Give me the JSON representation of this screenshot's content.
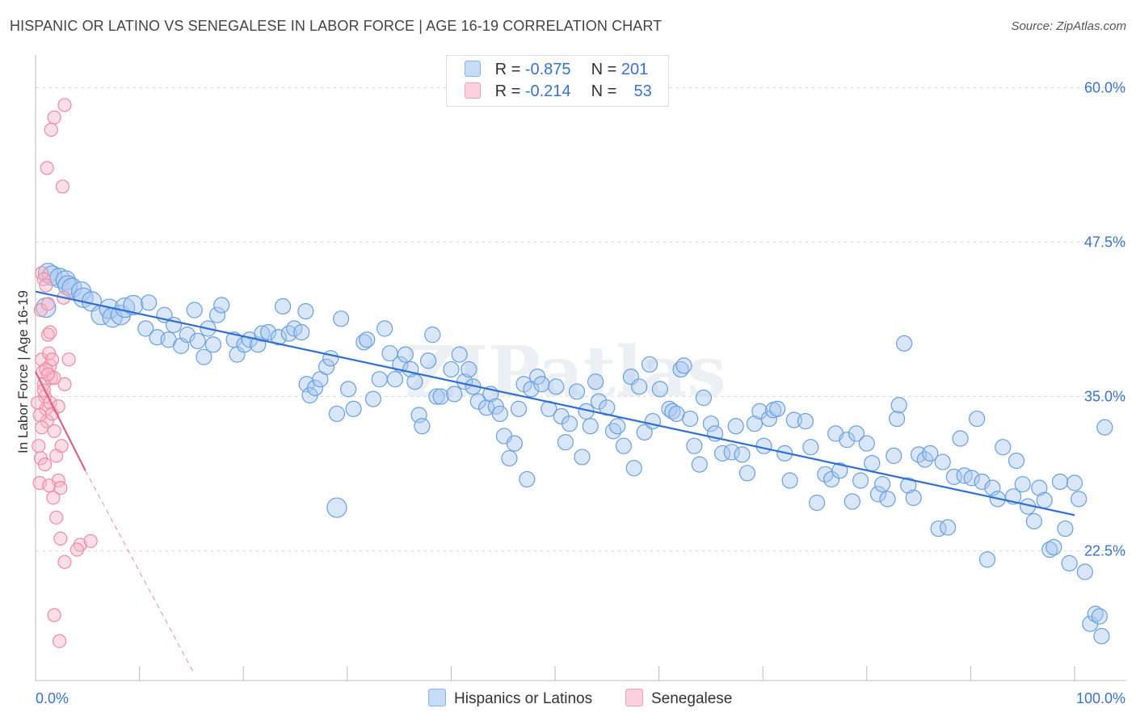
{
  "title": "HISPANIC OR LATINO VS SENEGALESE IN LABOR FORCE | AGE 16-19 CORRELATION CHART",
  "source": "Source: ZipAtlas.com",
  "watermark": "ZIPatlas",
  "legend_stats": [
    {
      "r_label": "R =",
      "r_value": "-0.875",
      "n_label": "N =",
      "n_value": "201",
      "color": "#a8c8f0"
    },
    {
      "r_label": "R =",
      "r_value": "-0.214",
      "n_label": "N =",
      "n_value": "53",
      "color": "#f7b6c8"
    }
  ],
  "colors": {
    "blue": "#6a9fe0",
    "blue_line": "#2f6fd0",
    "pink": "#ee8aa8",
    "pink_line": "#e0608a",
    "axis_text": "#3a72c9"
  },
  "chart_data": {
    "type": "scatter",
    "xlabel": "",
    "ylabel": "In Labor Force | Age 16-19",
    "xlim": [
      0,
      100
    ],
    "ylim": [
      12,
      62
    ],
    "x_tick_labels": [
      "0.0%",
      "100.0%"
    ],
    "y_ticks": [
      22.5,
      35.0,
      47.5,
      60.0
    ],
    "y_tick_labels": [
      "22.5%",
      "35.0%",
      "47.5%",
      "60.0%"
    ],
    "grid": "horizontal-dashed",
    "legend_placement": "bottom-center",
    "series": [
      {
        "name": "Hispanics or Latinos",
        "color": "#6a9fe0",
        "trend": {
          "x": [
            0,
            100
          ],
          "y": [
            43.5,
            25.4
          ]
        },
        "points": [
          [
            1,
            42.2
          ],
          [
            1.2,
            45
          ],
          [
            1.6,
            44.8
          ],
          [
            2.3,
            44.6
          ],
          [
            2.9,
            44.4
          ],
          [
            3.1,
            44
          ],
          [
            3.5,
            43.8
          ],
          [
            4.4,
            43.5
          ],
          [
            4.6,
            43
          ],
          [
            5.4,
            42.7
          ],
          [
            6.3,
            41.6
          ],
          [
            7.1,
            42.1
          ],
          [
            7.4,
            41.4
          ],
          [
            8.2,
            41.6
          ],
          [
            8.6,
            42.2
          ],
          [
            9.4,
            42.4
          ],
          [
            10.6,
            40.5
          ],
          [
            10.9,
            42.6
          ],
          [
            11.7,
            39.8
          ],
          [
            12.4,
            41.6
          ],
          [
            12.8,
            39.6
          ],
          [
            13.3,
            40.8
          ],
          [
            14,
            39.1
          ],
          [
            14.6,
            40
          ],
          [
            15.3,
            42
          ],
          [
            15.6,
            39.5
          ],
          [
            16.2,
            38.2
          ],
          [
            16.6,
            40.5
          ],
          [
            17.1,
            39.2
          ],
          [
            17.5,
            41.6
          ],
          [
            17.9,
            42.4
          ],
          [
            19.1,
            39.6
          ],
          [
            19.4,
            38.4
          ],
          [
            20.1,
            39.2
          ],
          [
            20.6,
            39.6
          ],
          [
            21.4,
            39.2
          ],
          [
            21.8,
            40.1
          ],
          [
            22.4,
            40.2
          ],
          [
            23.4,
            39.8
          ],
          [
            23.8,
            42.3
          ],
          [
            24.4,
            40.1
          ],
          [
            24.9,
            40.5
          ],
          [
            25.6,
            40.2
          ],
          [
            26,
            41.9
          ],
          [
            26.1,
            36
          ],
          [
            26.4,
            35.1
          ],
          [
            26.9,
            35.7
          ],
          [
            27.4,
            36.4
          ],
          [
            28,
            37.4
          ],
          [
            28.4,
            38.1
          ],
          [
            29,
            33.6
          ],
          [
            29.4,
            41.3
          ],
          [
            30.1,
            35.6
          ],
          [
            30.6,
            34
          ],
          [
            31.6,
            39.4
          ],
          [
            31.9,
            39.6
          ],
          [
            32.5,
            34.8
          ],
          [
            33.1,
            36.4
          ],
          [
            33.6,
            40.5
          ],
          [
            34.1,
            38.5
          ],
          [
            34.6,
            36.4
          ],
          [
            35.1,
            37.6
          ],
          [
            35.6,
            38.4
          ],
          [
            36.1,
            37.2
          ],
          [
            36.5,
            36.2
          ],
          [
            36.9,
            33.5
          ],
          [
            37.2,
            32.6
          ],
          [
            37.8,
            37.9
          ],
          [
            38.2,
            40
          ],
          [
            38.6,
            35
          ],
          [
            39,
            35
          ],
          [
            40,
            37.2
          ],
          [
            40.3,
            35.2
          ],
          [
            40.8,
            38.4
          ],
          [
            41.3,
            36.2
          ],
          [
            41.7,
            37.2
          ],
          [
            42.1,
            35.8
          ],
          [
            42.6,
            34.6
          ],
          [
            43.4,
            34.1
          ],
          [
            43.8,
            35.2
          ],
          [
            44.3,
            34.2
          ],
          [
            44.7,
            33.6
          ],
          [
            45.1,
            31.8
          ],
          [
            45.6,
            30
          ],
          [
            46.1,
            31.2
          ],
          [
            46.5,
            34
          ],
          [
            47,
            36
          ],
          [
            47.3,
            28.3
          ],
          [
            47.7,
            35.6
          ],
          [
            48.3,
            36.6
          ],
          [
            48.7,
            36
          ],
          [
            49.4,
            34
          ],
          [
            50.1,
            35.8
          ],
          [
            50.6,
            33.4
          ],
          [
            51,
            31.3
          ],
          [
            51.4,
            32.8
          ],
          [
            52.1,
            35.4
          ],
          [
            52.6,
            30.1
          ],
          [
            53,
            33.8
          ],
          [
            53.4,
            32.6
          ],
          [
            53.9,
            36.2
          ],
          [
            54.2,
            34.6
          ],
          [
            55,
            34.1
          ],
          [
            55.6,
            32.2
          ],
          [
            56,
            32.6
          ],
          [
            56.6,
            31
          ],
          [
            57.3,
            36.6
          ],
          [
            57.6,
            29.2
          ],
          [
            58.1,
            35.8
          ],
          [
            58.6,
            32.1
          ],
          [
            59.1,
            37.6
          ],
          [
            59.4,
            33
          ],
          [
            60.1,
            35.6
          ],
          [
            61,
            34
          ],
          [
            61.3,
            33.8
          ],
          [
            61.7,
            33.6
          ],
          [
            62.1,
            37.2
          ],
          [
            62.4,
            37.5
          ],
          [
            63,
            33.2
          ],
          [
            63.4,
            31
          ],
          [
            63.9,
            29.5
          ],
          [
            64.3,
            34.9
          ],
          [
            65,
            32.8
          ],
          [
            65.4,
            32
          ],
          [
            66.1,
            30.4
          ],
          [
            67,
            30.5
          ],
          [
            67.4,
            32.6
          ],
          [
            68,
            30.3
          ],
          [
            68.5,
            28.8
          ],
          [
            69.2,
            32.8
          ],
          [
            69.7,
            33.8
          ],
          [
            70.1,
            31
          ],
          [
            70.6,
            33.2
          ],
          [
            71,
            33.9
          ],
          [
            71.4,
            34
          ],
          [
            72.1,
            30.4
          ],
          [
            72.6,
            28.2
          ],
          [
            73,
            33.1
          ],
          [
            74.1,
            33
          ],
          [
            74.6,
            30.9
          ],
          [
            75.2,
            26.4
          ],
          [
            76,
            28.7
          ],
          [
            76.6,
            28.3
          ],
          [
            77,
            32
          ],
          [
            77.4,
            29
          ],
          [
            78.1,
            31.5
          ],
          [
            78.6,
            26.5
          ],
          [
            79,
            32
          ],
          [
            79.4,
            28.2
          ],
          [
            80,
            31.2
          ],
          [
            80.5,
            29.6
          ],
          [
            81.1,
            27.1
          ],
          [
            81.5,
            27.9
          ],
          [
            82,
            26.7
          ],
          [
            82.6,
            30.2
          ],
          [
            82.9,
            33.2
          ],
          [
            83.1,
            34.3
          ],
          [
            83.6,
            39.3
          ],
          [
            84,
            27.8
          ],
          [
            84.5,
            26.8
          ],
          [
            85,
            30.3
          ],
          [
            85.6,
            29.9
          ],
          [
            86.1,
            30.4
          ],
          [
            86.9,
            24.3
          ],
          [
            87.3,
            29.7
          ],
          [
            87.8,
            24.4
          ],
          [
            88.4,
            28.5
          ],
          [
            89,
            31.6
          ],
          [
            89.4,
            28.6
          ],
          [
            90.1,
            28.4
          ],
          [
            90.6,
            33.2
          ],
          [
            91.1,
            28.1
          ],
          [
            91.6,
            21.8
          ],
          [
            92.1,
            27.6
          ],
          [
            92.6,
            26.7
          ],
          [
            93.1,
            30.9
          ],
          [
            94.1,
            26.9
          ],
          [
            94.4,
            29.8
          ],
          [
            95,
            27.9
          ],
          [
            95.5,
            26.1
          ],
          [
            96.1,
            24.9
          ],
          [
            96.6,
            27.6
          ],
          [
            97.1,
            26.6
          ],
          [
            97.6,
            22.6
          ],
          [
            98,
            22.8
          ],
          [
            98.6,
            28.1
          ],
          [
            99.1,
            24.3
          ],
          [
            99.5,
            21.5
          ],
          [
            100,
            28
          ],
          [
            100.4,
            26.7
          ],
          [
            101,
            20.8
          ],
          [
            101.5,
            16.6
          ],
          [
            102,
            17.4
          ],
          [
            102.4,
            17.2
          ],
          [
            102.6,
            15.6
          ],
          [
            102.9,
            32.5
          ],
          [
            29,
            26
          ]
        ]
      },
      {
        "name": "Senegalese",
        "color": "#ee8aa8",
        "trend": {
          "x": [
            0,
            4.8
          ],
          "y": [
            37.0,
            29.0
          ]
        },
        "trend_extension": {
          "x": [
            4.8,
            15.3
          ],
          "y": [
            29.0,
            12.5
          ]
        },
        "points": [
          [
            0.5,
            42
          ],
          [
            0.6,
            38
          ],
          [
            0.7,
            37
          ],
          [
            0.8,
            36
          ],
          [
            0.9,
            35
          ],
          [
            1,
            34
          ],
          [
            1.1,
            33
          ],
          [
            1.2,
            40
          ],
          [
            1.3,
            38.5
          ],
          [
            1.4,
            37.5
          ],
          [
            1.5,
            36.5
          ],
          [
            0.3,
            31
          ],
          [
            0.4,
            28
          ],
          [
            0.5,
            30
          ],
          [
            0.6,
            45
          ],
          [
            0.8,
            44.5
          ],
          [
            1,
            44
          ],
          [
            1.2,
            42.5
          ],
          [
            1.4,
            40.2
          ],
          [
            1.6,
            38
          ],
          [
            1.8,
            36.5
          ],
          [
            0.2,
            34.5
          ],
          [
            0.4,
            33.5
          ],
          [
            0.6,
            32.5
          ],
          [
            0.8,
            35.5
          ],
          [
            1,
            37.2
          ],
          [
            1.2,
            36.8
          ],
          [
            1.4,
            34.5
          ],
          [
            1.6,
            33.6
          ],
          [
            1.8,
            32.2
          ],
          [
            2,
            30.2
          ],
          [
            2.2,
            28.2
          ],
          [
            2.4,
            27.6
          ],
          [
            0.9,
            29.5
          ],
          [
            1.3,
            27.8
          ],
          [
            1.7,
            26.8
          ],
          [
            2,
            25.2
          ],
          [
            2.7,
            43
          ],
          [
            3.2,
            38
          ],
          [
            4.3,
            23
          ],
          [
            5.3,
            23.3
          ],
          [
            2.2,
            34.2
          ],
          [
            2.5,
            31
          ],
          [
            2.8,
            36
          ],
          [
            1.1,
            53.5
          ],
          [
            2.6,
            52
          ],
          [
            1.5,
            56.6
          ],
          [
            1.8,
            57.6
          ],
          [
            2.8,
            58.6
          ],
          [
            2.4,
            23.5
          ],
          [
            2.8,
            21.6
          ],
          [
            4,
            22.6
          ],
          [
            1.8,
            17.3
          ],
          [
            2.3,
            15.2
          ]
        ]
      }
    ]
  }
}
